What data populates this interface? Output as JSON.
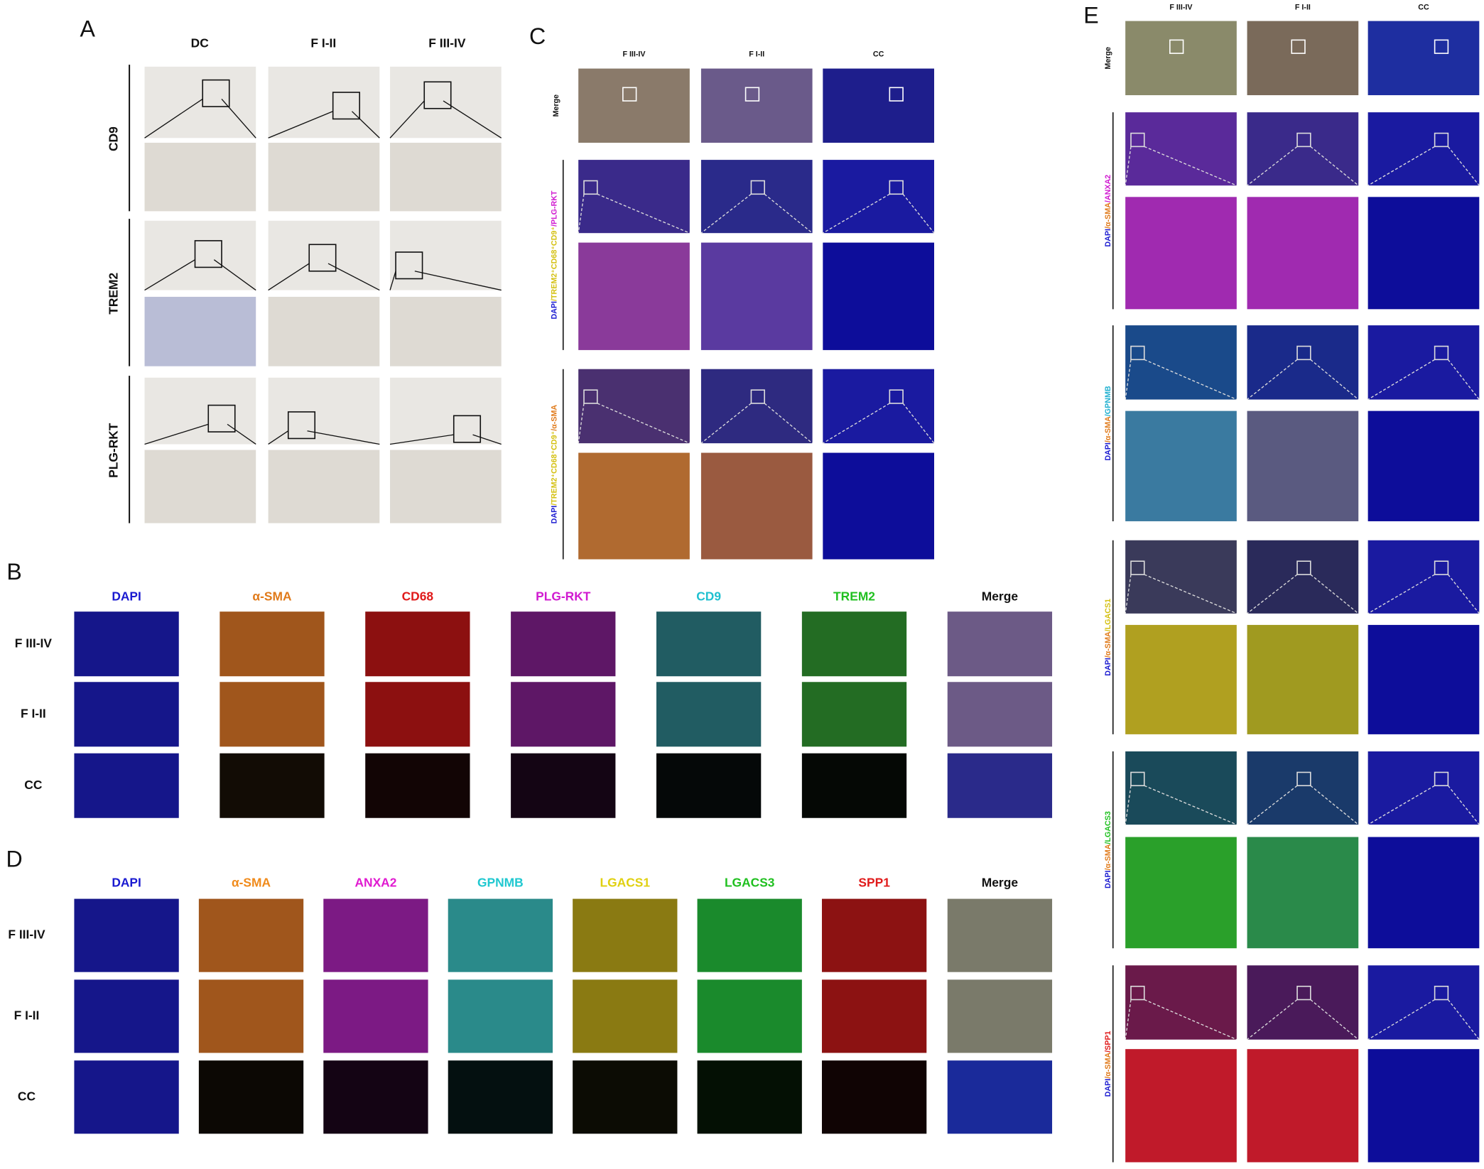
{
  "panel_a": {
    "label": "A",
    "columns": [
      "DC",
      "F I-II",
      "F III-IV"
    ],
    "rows": [
      "CD9",
      "TREM2",
      "PLG-RKT"
    ]
  },
  "panel_b": {
    "label": "B",
    "channels": [
      "DAPI",
      "α-SMA",
      "CD68",
      "PLG-RKT",
      "CD9",
      "TREM2",
      "Merge"
    ],
    "rows": [
      "F III-IV",
      "F I-II",
      "CC"
    ]
  },
  "panel_c": {
    "label": "C",
    "columns": [
      "F III-IV",
      "F I-II",
      "CC"
    ],
    "merge_label": "Merge",
    "stain_labels": [
      [
        "DAPI",
        "/TREM2⁺CD68⁺CD9⁺",
        "/PLG-RKT"
      ],
      [
        "DAPI",
        "/TREM2⁺CD68⁺CD9⁺",
        "/α-SMA"
      ]
    ]
  },
  "panel_d": {
    "label": "D",
    "channels": [
      "DAPI",
      "α-SMA",
      "ANXA2",
      "GPNMB",
      "LGACS1",
      "LGACS3",
      "SPP1",
      "Merge"
    ],
    "rows": [
      "F III-IV",
      "F I-II",
      "CC"
    ]
  },
  "panel_e": {
    "label": "E",
    "columns": [
      "F III-IV",
      "F I-II",
      "CC"
    ],
    "merge_label": "Merge",
    "stain_labels": [
      [
        "DAPI",
        "/α-SMA",
        "/ANXA2"
      ],
      [
        "DAPI",
        "/α-SMA",
        "/GPNMB"
      ],
      [
        "DAPI",
        "/α-SMA",
        "/LGACS1"
      ],
      [
        "DAPI",
        "/α-SMA",
        "/LGACS3"
      ],
      [
        "DAPI",
        "/α-SMA",
        "/SPP1"
      ]
    ]
  }
}
